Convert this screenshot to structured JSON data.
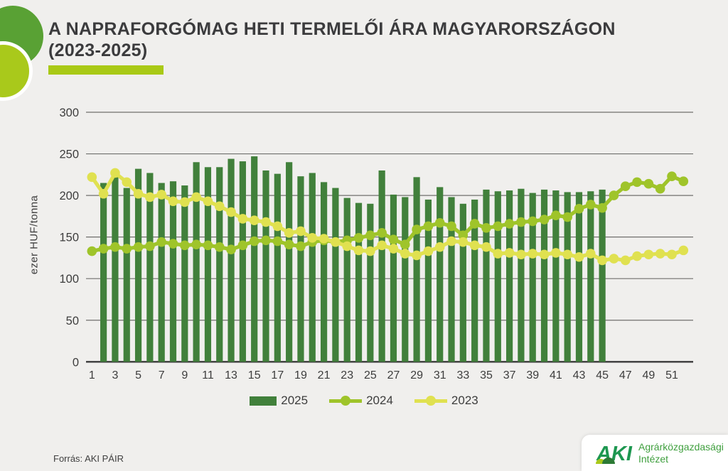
{
  "title": {
    "line1": "A NAPRAFORGÓMAG HETI TERMELŐI ÁRA MAGYARORSZÁGON",
    "line2": "(2023-2025)"
  },
  "y_axis_title": "ezer HUF/tonna",
  "source": "Forrás: AKI PÁIR",
  "logo": {
    "acronym": "AKI",
    "name_line1": "Agrárközgazdasági",
    "name_line2": "Intézet"
  },
  "legend": [
    {
      "label": "2025",
      "swatch": "bar",
      "color": "#41803b"
    },
    {
      "label": "2024",
      "swatch": "line",
      "color": "#9fc42a"
    },
    {
      "label": "2023",
      "swatch": "line",
      "color": "#e0e150"
    }
  ],
  "colors": {
    "background": "#f0efed",
    "title": "#3b3b3d",
    "accent": "#a9c916",
    "circle_big": "#59a134",
    "circle_small": "#a9c91b",
    "grid": "#6f6f6d",
    "zero_axis": "#3a3a3a",
    "tick_text": "#3d3d3d",
    "logo_green": "#1d9750",
    "logo_text_green": "#3f9f3e",
    "logo_hill_light": "#a9c91b",
    "logo_hill_dark": "#2c7a35"
  },
  "chart_data": {
    "type": "combo",
    "x_unit": "week",
    "xticks": [
      1,
      3,
      5,
      7,
      9,
      11,
      13,
      15,
      17,
      19,
      21,
      23,
      25,
      27,
      29,
      31,
      33,
      35,
      37,
      39,
      41,
      43,
      45,
      47,
      49,
      51
    ],
    "yticks": [
      0,
      50,
      100,
      150,
      200,
      250,
      300
    ],
    "ylim": [
      0,
      300
    ],
    "ylabel": "ezer HUF/tonna",
    "grid": true,
    "legend_position": "bottom",
    "series": [
      {
        "name": "2025",
        "type": "bar",
        "color": "#41803b",
        "start_week": 2,
        "values": [
          215,
          224,
          209,
          232,
          227,
          215,
          217,
          212,
          240,
          234,
          234,
          244,
          241,
          247,
          230,
          226,
          240,
          223,
          227,
          216,
          209,
          197,
          191,
          190,
          230,
          201,
          198,
          222,
          195,
          210,
          198,
          190,
          195,
          207,
          205,
          206,
          208,
          203,
          207,
          206,
          204,
          204,
          205,
          207
        ]
      },
      {
        "name": "2024",
        "type": "line",
        "color": "#9fc42a",
        "start_week": 1,
        "values": [
          133,
          136,
          138,
          136,
          138,
          139,
          144,
          142,
          140,
          141,
          140,
          138,
          135,
          140,
          145,
          146,
          145,
          141,
          139,
          144,
          146,
          144,
          146,
          149,
          152,
          155,
          147,
          141,
          159,
          163,
          167,
          163,
          152,
          166,
          161,
          163,
          166,
          168,
          169,
          171,
          176,
          174,
          184,
          189,
          185,
          200,
          211,
          216,
          214,
          208,
          223,
          217
        ]
      },
      {
        "name": "2023",
        "type": "line",
        "color": "#e0e150",
        "start_week": 1,
        "values": [
          222,
          202,
          227,
          216,
          202,
          198,
          201,
          193,
          192,
          198,
          193,
          187,
          180,
          172,
          170,
          168,
          163,
          155,
          157,
          149,
          148,
          144,
          139,
          134,
          133,
          140,
          136,
          130,
          128,
          133,
          138,
          145,
          144,
          140,
          138,
          130,
          131,
          129,
          130,
          129,
          131,
          129,
          126,
          130,
          122,
          124,
          122,
          127,
          129,
          130,
          129,
          134
        ]
      }
    ]
  }
}
